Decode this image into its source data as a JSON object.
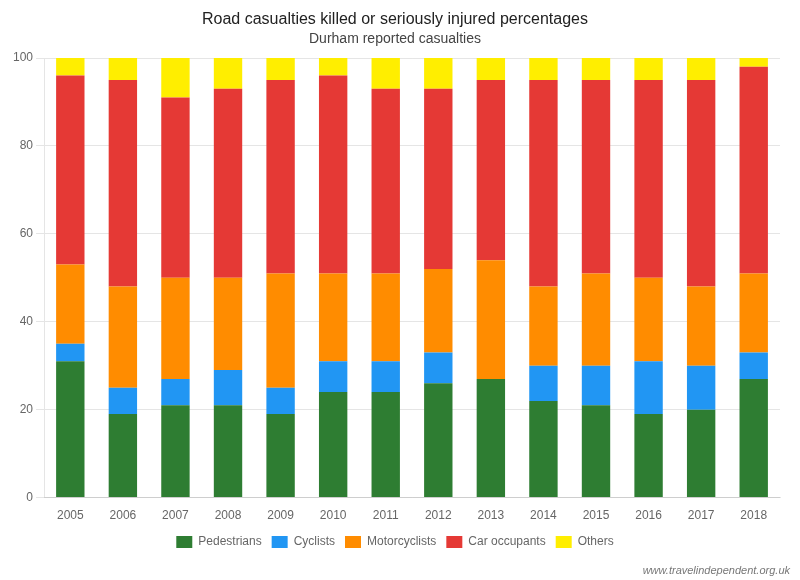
{
  "chart_data": {
    "type": "bar",
    "stacked": true,
    "title": "Road casualties killed or seriously injured percentages",
    "subtitle": "Durham reported casualties",
    "categories": [
      "2005",
      "2006",
      "2007",
      "2008",
      "2009",
      "2010",
      "2011",
      "2012",
      "2013",
      "2014",
      "2015",
      "2016",
      "2017",
      "2018"
    ],
    "series": [
      {
        "name": "Pedestrians",
        "color": "#2e7d32",
        "values": [
          31,
          19,
          21,
          21,
          19,
          24,
          24,
          26,
          27,
          22,
          21,
          19,
          20,
          27
        ]
      },
      {
        "name": "Cyclists",
        "color": "#2196f3",
        "values": [
          4,
          6,
          6,
          8,
          6,
          7,
          7,
          7,
          0,
          8,
          9,
          12,
          10,
          6
        ]
      },
      {
        "name": "Motorcyclists",
        "color": "#ff8c00",
        "values": [
          18,
          23,
          23,
          21,
          26,
          20,
          20,
          19,
          27,
          18,
          21,
          19,
          18,
          18
        ]
      },
      {
        "name": "Car occupants",
        "color": "#e53935",
        "values": [
          43,
          47,
          41,
          43,
          44,
          45,
          42,
          41,
          41,
          47,
          44,
          45,
          47,
          47
        ]
      },
      {
        "name": "Others",
        "color": "#ffee00",
        "values": [
          4,
          5,
          9,
          7,
          5,
          4,
          7,
          7,
          5,
          5,
          5,
          5,
          5,
          2
        ]
      }
    ],
    "ylim": [
      0,
      100
    ],
    "yticks": [
      0,
      20,
      40,
      60,
      80,
      100
    ],
    "grid": true,
    "legend": "bottom",
    "annotations": [
      "www.travelindependent.org.uk"
    ]
  }
}
